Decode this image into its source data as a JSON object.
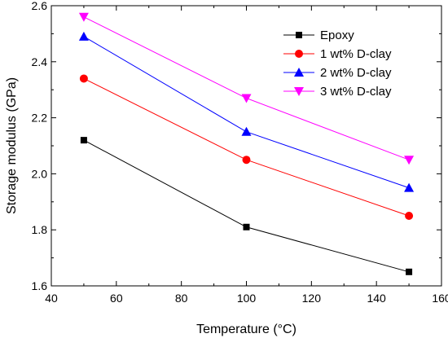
{
  "chart_data": {
    "type": "line",
    "xlabel": "Temperature (°C)",
    "ylabel": "Storage modulus (GPa)",
    "xlim": [
      40,
      160
    ],
    "ylim": [
      1.6,
      2.6
    ],
    "xticks": [
      40,
      60,
      80,
      100,
      120,
      140,
      160
    ],
    "yticks": [
      1.6,
      1.8,
      2.0,
      2.2,
      2.4,
      2.6
    ],
    "xtick_labels": [
      "40",
      "60",
      "80",
      "100",
      "120",
      "140",
      "160"
    ],
    "ytick_labels": [
      "1.6",
      "1.8",
      "2.0",
      "2.2",
      "2.4",
      "2.6"
    ],
    "grid": false,
    "legend_position": "top-right",
    "x": [
      50,
      100,
      150
    ],
    "series": [
      {
        "name": "Epoxy",
        "values": [
          2.12,
          1.81,
          1.65
        ],
        "color": "#000000",
        "marker": "square"
      },
      {
        "name": "1 wt% D-clay",
        "values": [
          2.34,
          2.05,
          1.85
        ],
        "color": "#ff0000",
        "marker": "circle"
      },
      {
        "name": "2 wt% D-clay",
        "values": [
          2.49,
          2.15,
          1.95
        ],
        "color": "#0000ff",
        "marker": "triangle-up"
      },
      {
        "name": "3 wt% D-clay",
        "values": [
          2.56,
          2.27,
          2.05
        ],
        "color": "#ff00ff",
        "marker": "triangle-down"
      }
    ]
  }
}
